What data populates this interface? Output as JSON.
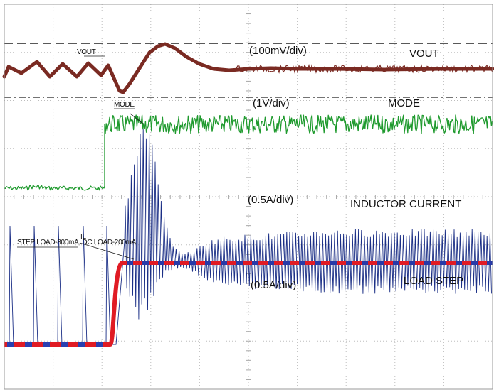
{
  "chart_data": {
    "type": "line",
    "grid": "on",
    "grid_divisions": {
      "x": 10,
      "y": 8
    },
    "series": [
      {
        "name": "VOUT",
        "color": "#7a2a22"
      },
      {
        "name": "MODE",
        "color": "#1f9a2e"
      },
      {
        "name": "INDUCTOR CURRENT",
        "color": "#1b2f86"
      },
      {
        "name": "LOAD STEP",
        "color": "#e01b24"
      }
    ],
    "channel_labels": {
      "vout": "VOUT",
      "mode": "MODE",
      "inductor_current": "INDUCTOR CURRENT",
      "load_step": "LOAD STEP"
    },
    "scale_labels": {
      "vout": "(100mV/div)",
      "mode": "(1V/div)",
      "inductor_current": "(0.5A/div)",
      "load_step": "(0.5A/div)"
    },
    "annotations": {
      "vout_marker": "VOUT",
      "mode_marker": "MODE",
      "il_marker": "IL",
      "step_load": "STEP LOAD-800mA, DC LOAD-200mA"
    }
  }
}
